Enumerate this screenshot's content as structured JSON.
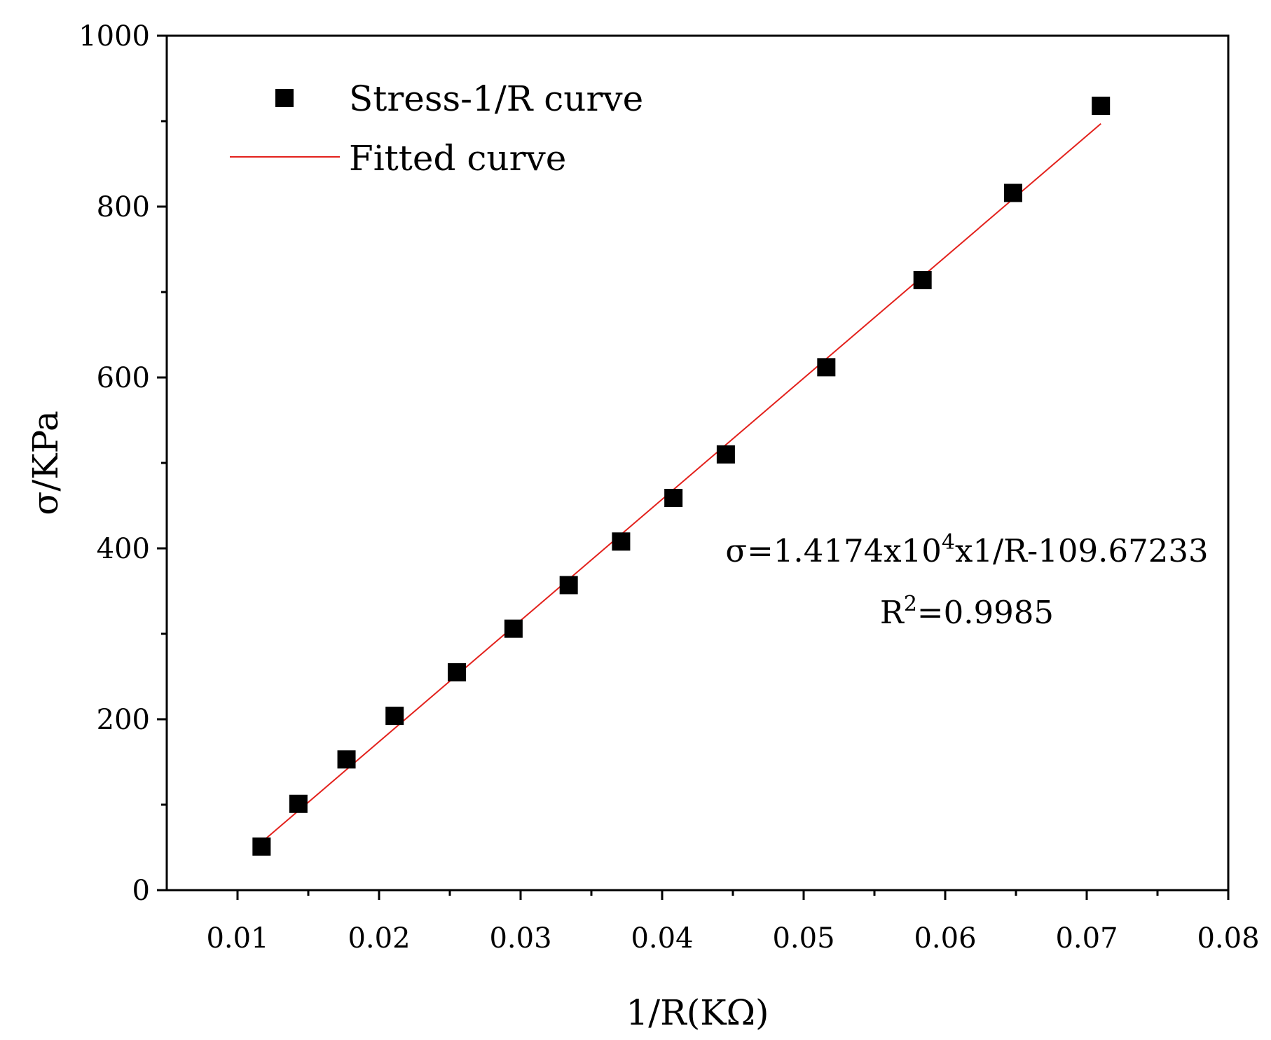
{
  "chart_data": {
    "type": "scatter",
    "title": "",
    "xlabel": "1/R(KΩ)",
    "ylabel": "σ/KPa",
    "xlim": [
      0.005,
      0.08
    ],
    "ylim": [
      0,
      1000
    ],
    "x_ticks": [
      0.01,
      0.02,
      0.03,
      0.04,
      0.05,
      0.06,
      0.07,
      0.08
    ],
    "x_tick_labels": [
      "0.01",
      "0.02",
      "0.03",
      "0.04",
      "0.05",
      "0.06",
      "0.07",
      "0.08"
    ],
    "x_minor_ticks": [
      0.015,
      0.025,
      0.035,
      0.045,
      0.055,
      0.065,
      0.075
    ],
    "y_ticks": [
      0,
      200,
      400,
      600,
      800,
      1000
    ],
    "y_tick_labels": [
      "0",
      "200",
      "400",
      "600",
      "800",
      "1000"
    ],
    "y_minor_ticks": [
      100,
      300,
      500,
      700,
      900
    ],
    "grid": false,
    "legend_position": "top-left",
    "series": [
      {
        "name": "Stress-1/R curve",
        "kind": "scatter",
        "marker": "square",
        "color": "#000000",
        "x": [
          0.0117,
          0.0143,
          0.0177,
          0.0211,
          0.0255,
          0.0295,
          0.0334,
          0.0371,
          0.0408,
          0.0445,
          0.0516,
          0.0584,
          0.0648,
          0.071
        ],
        "y": [
          51,
          101,
          153,
          204,
          255,
          306,
          357,
          408,
          459,
          510,
          612,
          714,
          816,
          918
        ]
      },
      {
        "name": "Fitted curve",
        "kind": "line",
        "color": "#e3211c",
        "x": [
          0.0117,
          0.071
        ],
        "y": [
          56,
          897
        ]
      }
    ],
    "annotations": [
      {
        "main": "σ=1.4174x10",
        "sup": "4",
        "tail": "x1/R-109.67233"
      },
      {
        "main": "R",
        "sup": "2",
        "tail": "=0.9985"
      }
    ]
  }
}
